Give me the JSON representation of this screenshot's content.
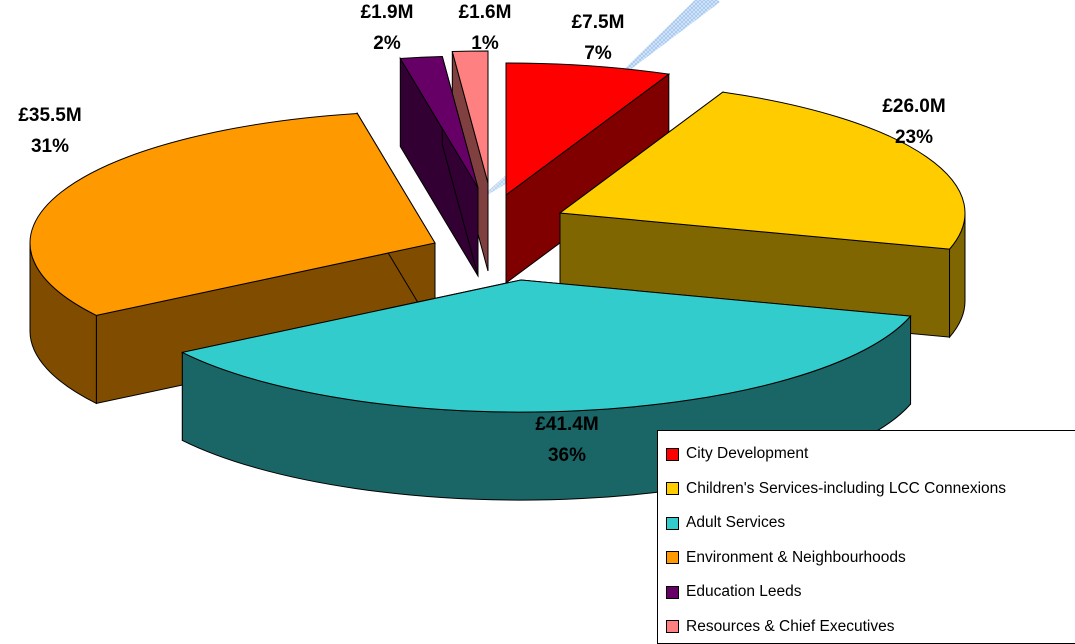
{
  "chart_data": {
    "type": "pie",
    "title": "",
    "legend_position": "bottom-right",
    "slices": [
      {
        "name": "City Development",
        "value": 7.5,
        "value_label": "£7.5M",
        "percent_label": "7%",
        "color": "#ff0000",
        "side_color": "#800000"
      },
      {
        "name": "Children's Services-including LCC Connexions",
        "value": 26.0,
        "value_label": "£26.0M",
        "percent_label": "23%",
        "color": "#ffcc00",
        "side_color": "#806600"
      },
      {
        "name": "Adult Services",
        "value": 41.4,
        "value_label": "£41.4M",
        "percent_label": "36%",
        "color": "#33cccc",
        "side_color": "#1a6666"
      },
      {
        "name": "Environment & Neighbourhoods",
        "value": 35.5,
        "value_label": "£35.5M",
        "percent_label": "31%",
        "color": "#ff9900",
        "side_color": "#804c00"
      },
      {
        "name": "Education Leeds",
        "value": 1.9,
        "value_label": "£1.9M",
        "percent_label": "2%",
        "color": "#660066",
        "side_color": "#330033"
      },
      {
        "name": "Resources & Chief Executives",
        "value": 1.6,
        "value_label": "£1.6M",
        "percent_label": "1%",
        "color": "#ff8080",
        "side_color": "#804040"
      }
    ]
  }
}
